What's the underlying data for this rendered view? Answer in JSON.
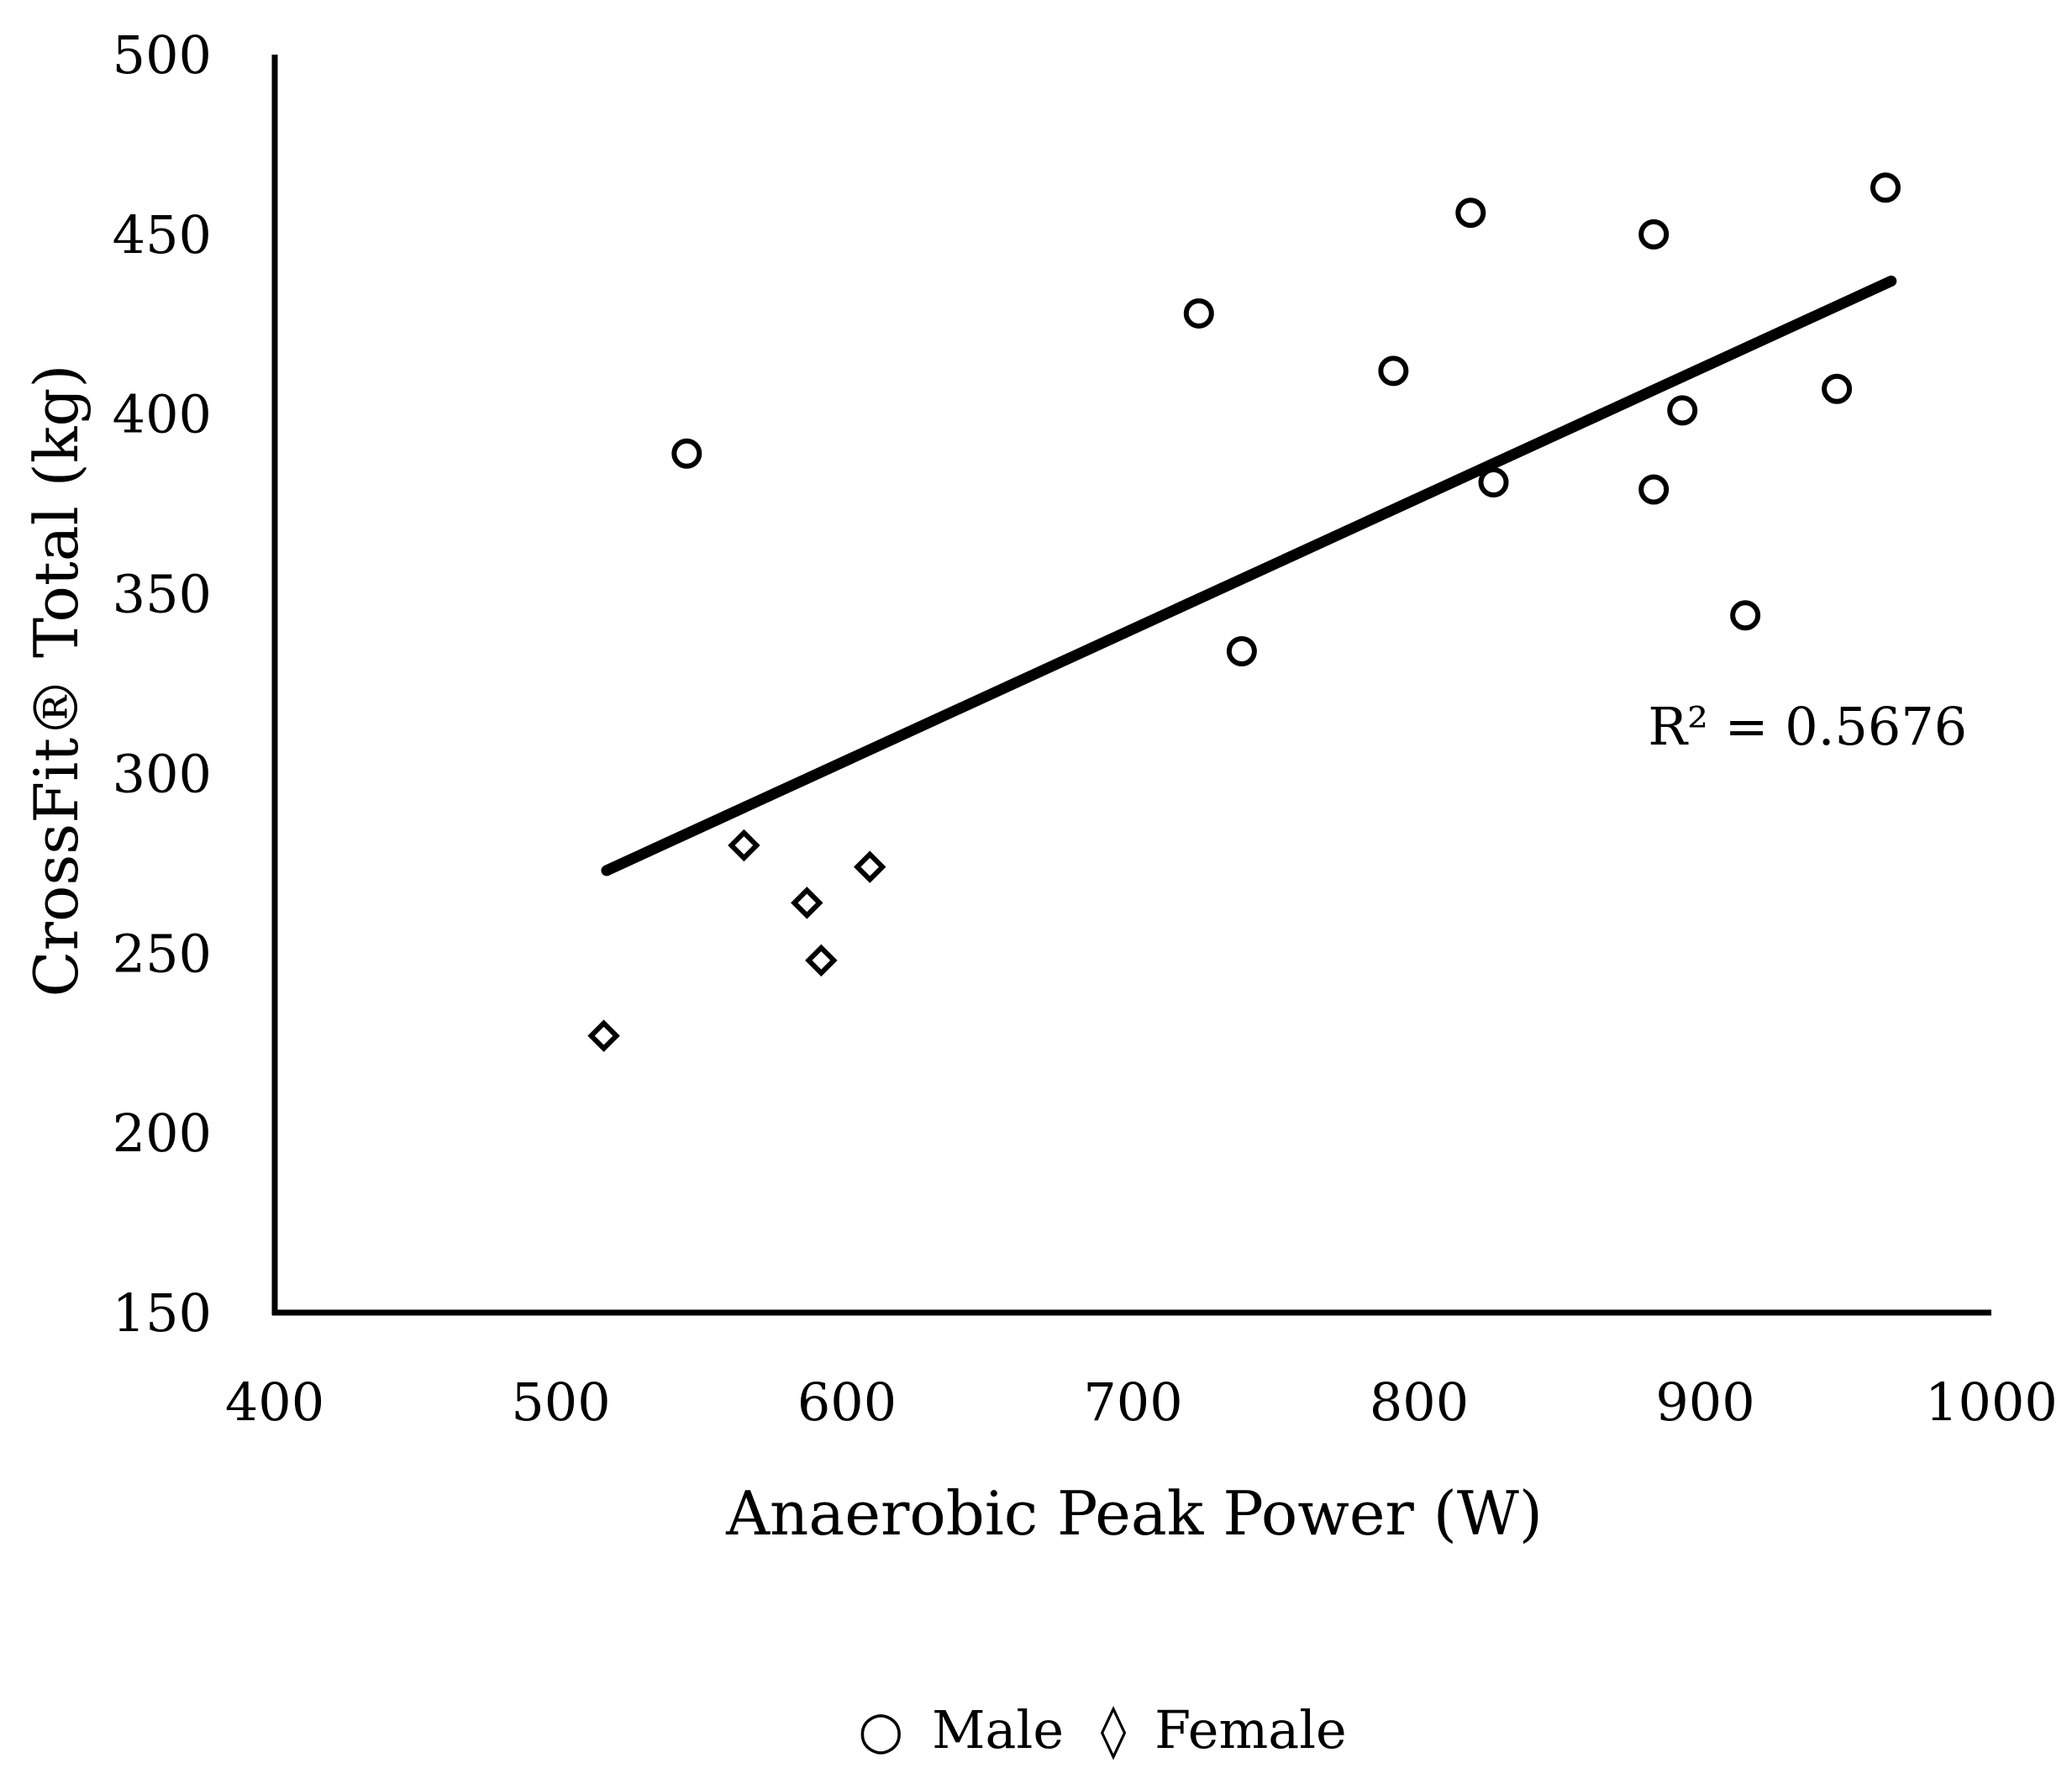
{
  "chart_data": {
    "type": "scatter",
    "title": "",
    "xlabel": "Anaerobic Peak Power (W)",
    "ylabel": "CrossFit® Total (kg)",
    "xlim": [
      400,
      1000
    ],
    "ylim": [
      150,
      500
    ],
    "xticks": [
      400,
      500,
      600,
      700,
      800,
      900,
      1000
    ],
    "yticks": [
      150,
      200,
      250,
      300,
      350,
      400,
      450,
      500
    ],
    "xtick_labels": [
      "400",
      "500",
      "600",
      "700",
      "800",
      "900",
      "1000"
    ],
    "ytick_labels": [
      "150",
      "200",
      "250",
      "300",
      "350",
      "400",
      "450",
      "500"
    ],
    "grid": false,
    "series": [
      {
        "name": "Male",
        "marker": "circle",
        "points": [
          {
            "x": 544,
            "y": 389
          },
          {
            "x": 723,
            "y": 428
          },
          {
            "x": 738,
            "y": 334
          },
          {
            "x": 791,
            "y": 412
          },
          {
            "x": 818,
            "y": 456
          },
          {
            "x": 826,
            "y": 381
          },
          {
            "x": 882,
            "y": 450
          },
          {
            "x": 882,
            "y": 379
          },
          {
            "x": 892,
            "y": 401
          },
          {
            "x": 914,
            "y": 344
          },
          {
            "x": 946,
            "y": 407
          },
          {
            "x": 963,
            "y": 463
          }
        ]
      },
      {
        "name": "Female",
        "marker": "diamond",
        "points": [
          {
            "x": 515,
            "y": 227
          },
          {
            "x": 564,
            "y": 280
          },
          {
            "x": 586,
            "y": 264
          },
          {
            "x": 591,
            "y": 248
          },
          {
            "x": 608,
            "y": 274
          }
        ]
      }
    ],
    "trendline": {
      "type": "linear",
      "from": {
        "x": 516,
        "y": 273
      },
      "to": {
        "x": 965,
        "y": 437
      }
    },
    "annotations": [
      {
        "text": "R² = 0.5676",
        "x": 880,
        "y": 308
      }
    ],
    "legend": {
      "position": "bottom-center",
      "entries": [
        {
          "symbol": "○",
          "label": "Male"
        },
        {
          "symbol": "◊",
          "label": "Female"
        }
      ]
    }
  }
}
